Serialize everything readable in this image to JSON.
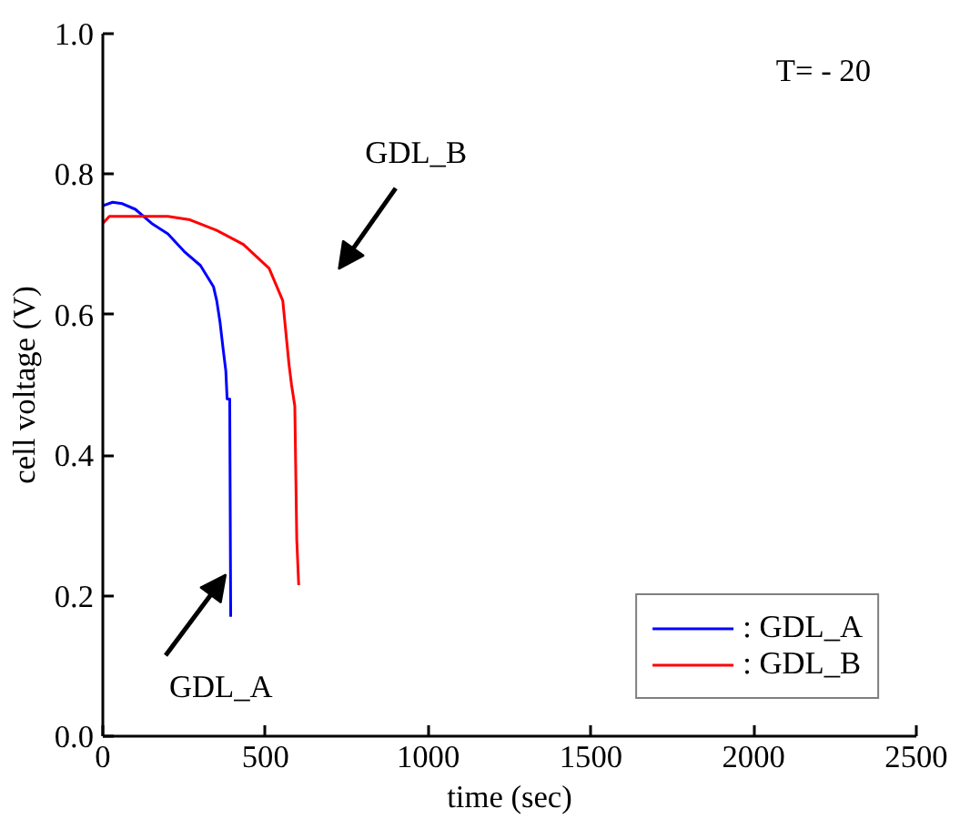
{
  "chart_data": {
    "type": "line",
    "xlabel": "time (sec)",
    "ylabel": "cell voltage (V)",
    "xlim": [
      0,
      2500
    ],
    "xticks": [
      0,
      500,
      1000,
      1500,
      2000,
      2500
    ],
    "ylim": [
      0,
      1.0
    ],
    "yticks": [
      {
        "value": 0,
        "label": "0.0"
      },
      {
        "value": 0.2,
        "label": "0.2"
      },
      {
        "value": 0.4,
        "label": "0.4"
      },
      {
        "value": 0.6,
        "label": "0.6"
      },
      {
        "value": 0.8,
        "label": "0.8"
      },
      {
        "value": 1.0,
        "label": "1.0"
      }
    ],
    "grid": false,
    "legend": "bottom right",
    "marker": "none",
    "line_style": "solid",
    "series": [
      {
        "name": ": GDL_A",
        "color": "#0000ff",
        "x": [
          0,
          30,
          60,
          100,
          150,
          200,
          250,
          300,
          340,
          350,
          360,
          370,
          378,
          382,
          390,
          393
        ],
        "values": [
          0.755,
          0.76,
          0.758,
          0.75,
          0.73,
          0.715,
          0.69,
          0.67,
          0.64,
          0.62,
          0.59,
          0.55,
          0.52,
          0.48,
          0.48,
          0.17
        ]
      },
      {
        "name": ": GDL_B",
        "color": "#ff0000",
        "x": [
          0,
          20,
          100,
          200,
          268,
          350,
          432,
          511,
          553,
          572,
          580,
          590,
          596,
          602
        ],
        "values": [
          0.73,
          0.74,
          0.74,
          0.74,
          0.735,
          0.72,
          0.7,
          0.666,
          0.62,
          0.53,
          0.5,
          0.47,
          0.28,
          0.215
        ]
      }
    ],
    "annotations": [
      "T= - 20",
      "GDL_B",
      {
        "text": "GDL_A",
        "x": 393,
        "y": 0.23
      }
    ]
  }
}
